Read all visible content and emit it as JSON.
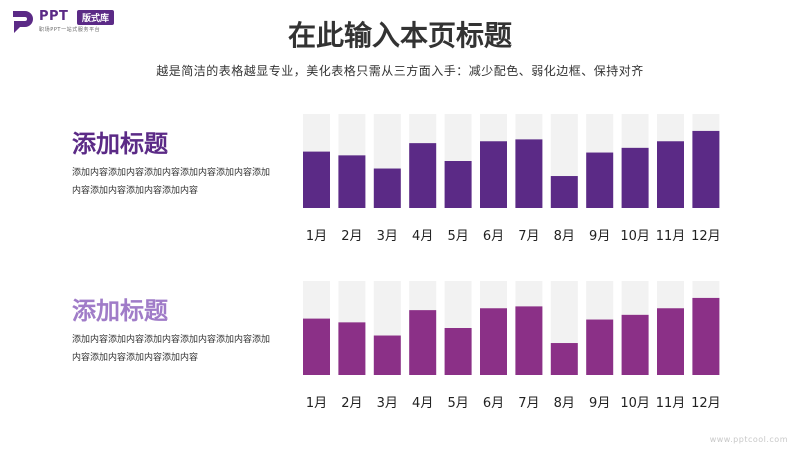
{
  "logo": {
    "brand": "PPT",
    "badge": "版式库",
    "tagline": "职场PPT一站式服务平台"
  },
  "header": {
    "title": "在此输入本页标题",
    "subtitle": "越是简洁的表格越显专业，美化表格只需从三方面入手：减少配色、弱化边框、保持对齐"
  },
  "sections": [
    {
      "title": "添加标题",
      "description": "添加内容添加内容添加内容添加内容添加内容添加内容添加内容添加内容添加内容"
    },
    {
      "title": "添加标题",
      "description": "添加内容添加内容添加内容添加内容添加内容添加内容添加内容添加内容添加内容"
    }
  ],
  "colors": {
    "bar_track": "#f2f2f2",
    "chart1_bar": "#5b2a86",
    "chart2_bar": "#8b3087",
    "title1": "#5b2a86",
    "title2": "#a07cc8"
  },
  "watermark": "www.pptcool.com",
  "chart_data": [
    {
      "type": "bar",
      "categories": [
        "1月",
        "2月",
        "3月",
        "4月",
        "5月",
        "6月",
        "7月",
        "8月",
        "9月",
        "10月",
        "11月",
        "12月"
      ],
      "values": [
        60,
        56,
        42,
        69,
        50,
        71,
        73,
        34,
        59,
        64,
        71,
        82
      ],
      "ylim": [
        0,
        100
      ],
      "grid": false
    },
    {
      "type": "bar",
      "categories": [
        "1月",
        "2月",
        "3月",
        "4月",
        "5月",
        "6月",
        "7月",
        "8月",
        "9月",
        "10月",
        "11月",
        "12月"
      ],
      "values": [
        60,
        56,
        42,
        69,
        50,
        71,
        73,
        34,
        59,
        64,
        71,
        82
      ],
      "ylim": [
        0,
        100
      ],
      "grid": false
    }
  ]
}
